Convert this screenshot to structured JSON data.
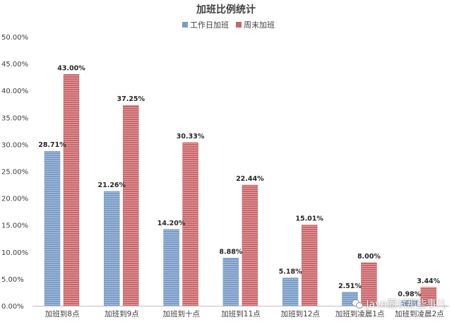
{
  "chart_data": {
    "type": "bar",
    "title": "加班比例统计",
    "categories": [
      "加班到8点",
      "加班到9点",
      "加班到十点",
      "加班到11点",
      "加班到12点",
      "加班到凌晨1点",
      "加班到凌晨2点"
    ],
    "series": [
      {
        "name": "工作日加班",
        "values": [
          28.71,
          21.26,
          14.2,
          8.88,
          5.18,
          2.51,
          0.98
        ],
        "labels": [
          "28.71%",
          "21.26%",
          "14.20%",
          "8.88%",
          "5.18%",
          "2.51%",
          "0.98%"
        ],
        "color": "#7a9cc6"
      },
      {
        "name": "周末加班",
        "values": [
          43.0,
          37.25,
          30.33,
          22.44,
          15.01,
          8.0,
          3.44
        ],
        "labels": [
          "43.00%",
          "37.25%",
          "30.33%",
          "22.44%",
          "15.01%",
          "8.00%",
          "3.44%"
        ],
        "color": "#c8666a"
      }
    ],
    "ylim": [
      0,
      50
    ],
    "yticks": [
      "0.00%",
      "5.00%",
      "10.00%",
      "15.00%",
      "20.00%",
      "25.00%",
      "30.00%",
      "35.00%",
      "40.00%",
      "45.00%",
      "50.00%"
    ],
    "grid": false,
    "legend": "top-center"
  },
  "watermark": {
    "text": "Java面试那些事儿",
    "icon": "wechat-icon"
  }
}
